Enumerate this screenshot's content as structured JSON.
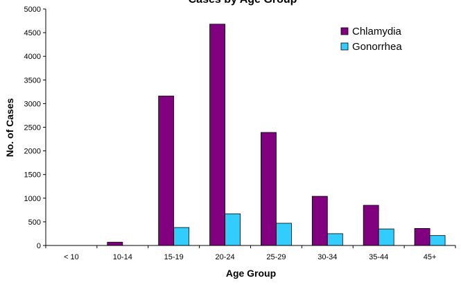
{
  "chart_data": {
    "type": "bar",
    "title": "Cases by Age Group",
    "xlabel": "Age Group",
    "ylabel": "No. of Cases",
    "categories": [
      "< 10",
      "10-14",
      "15-19",
      "20-24",
      "25-29",
      "30-34",
      "35-44",
      "45+"
    ],
    "series": [
      {
        "name": "Chlamydia",
        "color": "#800080",
        "values": [
          0,
          70,
          3160,
          4680,
          2390,
          1040,
          850,
          360
        ]
      },
      {
        "name": "Gonorrhea",
        "color": "#33CCFF",
        "values": [
          0,
          0,
          380,
          670,
          470,
          250,
          350,
          210
        ]
      }
    ],
    "ylim": [
      0,
      5000
    ],
    "yticks": [
      "0",
      "500",
      "1000",
      "1500",
      "2000",
      "2500",
      "3000",
      "3500",
      "4000",
      "4500",
      "5000"
    ],
    "grid": false,
    "legend_position": "top-right"
  }
}
